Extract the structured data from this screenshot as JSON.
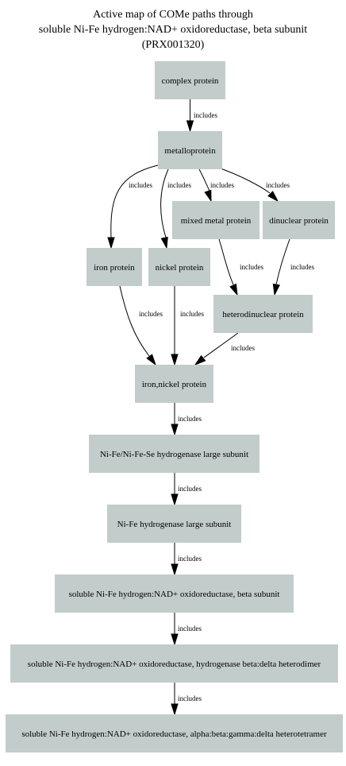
{
  "title": {
    "lines": [
      "Active map of COMe paths through",
      "soluble Ni-Fe hydrogen:NAD+ oxidoreductase, beta subunit",
      "(PRX001320)"
    ]
  },
  "nodes": [
    {
      "id": "complex",
      "label": "complex protein"
    },
    {
      "id": "metallo",
      "label": "metalloprotein"
    },
    {
      "id": "mixed",
      "label": "mixed metal protein"
    },
    {
      "id": "dinuclear",
      "label": "dinuclear protein"
    },
    {
      "id": "iron",
      "label": "iron protein"
    },
    {
      "id": "nickel",
      "label": "nickel protein"
    },
    {
      "id": "hetero",
      "label": "heterodinuclear protein"
    },
    {
      "id": "ironnickel",
      "label": "iron,nickel protein"
    },
    {
      "id": "nifese",
      "label": "Ni-Fe/Ni-Fe-Se hydrogenase large subunit"
    },
    {
      "id": "nifelarge",
      "label": "Ni-Fe hydrogenase large subunit"
    },
    {
      "id": "beta",
      "label": "soluble Ni-Fe hydrogen:NAD+ oxidoreductase, beta subunit"
    },
    {
      "id": "betadelta",
      "label": "soluble Ni-Fe hydrogen:NAD+ oxidoreductase, hydrogenase beta:delta heterodimer"
    },
    {
      "id": "tetramer",
      "label": "soluble Ni-Fe hydrogen:NAD+ oxidoreductase, alpha:beta:gamma:delta heterotetramer"
    }
  ],
  "edges": [
    {
      "from": "complex",
      "to": "metallo",
      "label": "includes"
    },
    {
      "from": "metallo",
      "to": "iron",
      "label": "includes"
    },
    {
      "from": "metallo",
      "to": "nickel",
      "label": "includes"
    },
    {
      "from": "metallo",
      "to": "mixed",
      "label": "includes"
    },
    {
      "from": "metallo",
      "to": "dinuclear",
      "label": "includes"
    },
    {
      "from": "mixed",
      "to": "hetero",
      "label": "includes"
    },
    {
      "from": "dinuclear",
      "to": "hetero",
      "label": "includes"
    },
    {
      "from": "iron",
      "to": "ironnickel",
      "label": "includes"
    },
    {
      "from": "nickel",
      "to": "ironnickel",
      "label": "includes"
    },
    {
      "from": "hetero",
      "to": "ironnickel",
      "label": "includes"
    },
    {
      "from": "ironnickel",
      "to": "nifese",
      "label": "includes"
    },
    {
      "from": "nifese",
      "to": "nifelarge",
      "label": "includes"
    },
    {
      "from": "nifelarge",
      "to": "beta",
      "label": "includes"
    },
    {
      "from": "beta",
      "to": "betadelta",
      "label": "includes"
    },
    {
      "from": "betadelta",
      "to": "tetramer",
      "label": "includes"
    }
  ]
}
